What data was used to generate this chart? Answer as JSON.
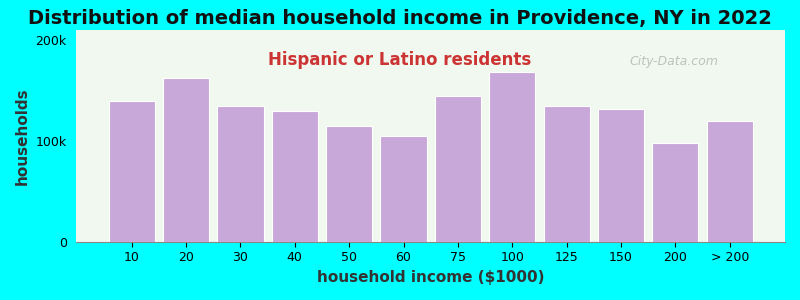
{
  "title": "Distribution of median household income in Providence, NY in 2022",
  "subtitle": "Hispanic or Latino residents",
  "xlabel": "household income ($1000)",
  "ylabel": "households",
  "background_color": "#00FFFF",
  "plot_bg_color": "#f0f8f0",
  "bar_color": "#c8a8d8",
  "bar_edge_color": "#ffffff",
  "categories": [
    "10",
    "20",
    "30",
    "40",
    "50",
    "60",
    "75",
    "100",
    "125",
    "150",
    "200",
    "> 200"
  ],
  "bar_values": [
    140000,
    162000,
    135000,
    130000,
    115000,
    105000,
    145000,
    168000,
    135000,
    132000,
    98000,
    120000
  ],
  "ylim": [
    0,
    210000
  ],
  "yticks": [
    0,
    100000,
    200000
  ],
  "title_fontsize": 14,
  "subtitle_fontsize": 12,
  "axis_label_fontsize": 11,
  "watermark": "City-Data.com"
}
